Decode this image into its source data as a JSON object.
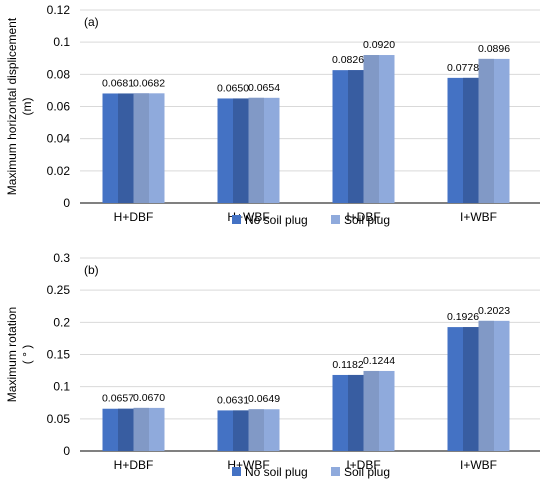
{
  "chart_data": [
    {
      "type": "bar",
      "panel_label": "(a)",
      "ylabel_line1": "Maximum horizontal displicement",
      "ylabel_line2": "(m)",
      "categories": [
        "H+DBF",
        "H+WBF",
        "I+DBF",
        "I+WBF"
      ],
      "ylim": [
        0,
        0.12
      ],
      "yticks": [
        0,
        0.02,
        0.04,
        0.06,
        0.08,
        0.1,
        0.12
      ],
      "ytick_labels": [
        "0",
        "0.02",
        "0.04",
        "0.06",
        "0.08",
        "0.1",
        "0.12"
      ],
      "grid": true,
      "legend_position": "bottom",
      "series": [
        {
          "name": "No soil plug",
          "color": "#4472c4",
          "values": [
            0.0681,
            0.065,
            0.0826,
            0.0778
          ],
          "labels": [
            "0.0681",
            "0.0650",
            "0.0826",
            "0.0778"
          ]
        },
        {
          "name": "Soil plug",
          "color": "#8faadc",
          "values": [
            0.0682,
            0.0654,
            0.092,
            0.0896
          ],
          "labels": [
            "0.0682",
            "0.0654",
            "0.0920",
            "0.0896"
          ]
        }
      ]
    },
    {
      "type": "bar",
      "panel_label": "(b)",
      "ylabel_line1": "Maximum rotation",
      "ylabel_line2": "( ° )",
      "categories": [
        "H+DBF",
        "H+WBF",
        "I+DBF",
        "I+WBF"
      ],
      "ylim": [
        0,
        0.3
      ],
      "yticks": [
        0,
        0.05,
        0.1,
        0.15,
        0.2,
        0.25,
        0.3
      ],
      "ytick_labels": [
        "0",
        "0.05",
        "0.1",
        "0.15",
        "0.2",
        "0.25",
        "0.3"
      ],
      "grid": true,
      "legend_position": "bottom",
      "series": [
        {
          "name": "No soil plug",
          "color": "#4472c4",
          "values": [
            0.0657,
            0.0631,
            0.1182,
            0.1926
          ],
          "labels": [
            "0.0657",
            "0.0631",
            "0.1182",
            "0.1926"
          ]
        },
        {
          "name": "Soil plug",
          "color": "#8faadc",
          "values": [
            0.067,
            0.0649,
            0.1244,
            0.2023
          ],
          "labels": [
            "0.0670",
            "0.0649",
            "0.1244",
            "0.2023"
          ]
        }
      ]
    }
  ]
}
